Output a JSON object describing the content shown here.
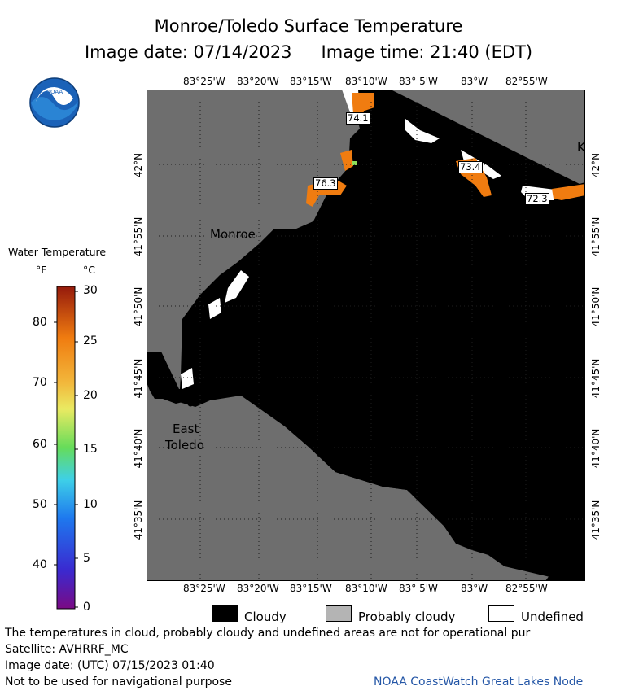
{
  "header": {
    "title": "Monroe/Toledo Surface Temperature",
    "image_date": "Image date: 07/14/2023",
    "image_time": "Image time: 21:40 (EDT)"
  },
  "logo": {
    "text": "NOAA"
  },
  "map": {
    "lon_labels": [
      "83°25'W",
      "83°20'W",
      "83°15'W",
      "83°10'W",
      "83° 5'W",
      "83°W",
      "82°55'W"
    ],
    "lat_labels": [
      "42°N",
      "41°55'N",
      "41°50'N",
      "41°45'N",
      "41°40'N",
      "41°35'N"
    ],
    "places": {
      "monroe": "Monroe",
      "east": "East",
      "toledo": "Toledo",
      "k": "K"
    },
    "readouts": [
      "74.1",
      "76.3",
      "73.4",
      "72.3"
    ],
    "colors": {
      "land": "#6e6e6e",
      "cloud": "#000000",
      "undefined": "#ffffff",
      "warm": "#f07c10"
    }
  },
  "legend": {
    "title": "Water Temperature",
    "unit_f": "°F",
    "unit_c": "°C",
    "fahrenheit_ticks": [
      "80",
      "70",
      "60",
      "50",
      "40"
    ],
    "celsius_ticks": [
      "30",
      "25",
      "20",
      "15",
      "10",
      "5",
      "0"
    ]
  },
  "key": {
    "cloudy": "Cloudy",
    "probably_cloudy": "Probably cloudy",
    "undefined": "Undefined"
  },
  "footer": {
    "note": "The temperatures in cloud, probably cloudy and undefined areas are not for operational pur",
    "satellite": "Satellite: AVHRRF_MC",
    "utc_date": "Image date: (UTC) 07/15/2023  01:40",
    "nav": "Not to be used for navigational purpose",
    "credit": "NOAA CoastWatch Great Lakes Node"
  }
}
